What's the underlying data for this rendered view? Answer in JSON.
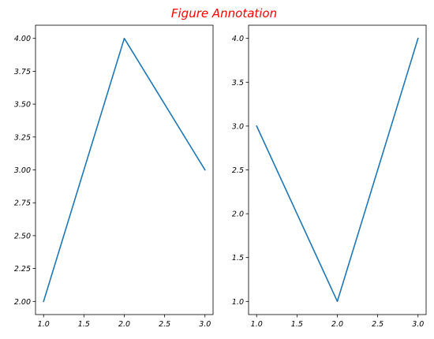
{
  "figure": {
    "title": "Figure Annotation",
    "title_color": "#ff0000"
  },
  "chart_data": [
    {
      "type": "line",
      "title": "",
      "xlabel": "",
      "ylabel": "",
      "x": [
        1.0,
        2.0,
        3.0
      ],
      "series": [
        {
          "values": [
            2.0,
            4.0,
            3.0
          ],
          "color": "#1f77b4"
        }
      ],
      "xlim": [
        0.9,
        3.1
      ],
      "ylim": [
        1.9,
        4.1
      ],
      "xticks": [
        1.0,
        1.5,
        2.0,
        2.5,
        3.0
      ],
      "xtick_labels": [
        "1.0",
        "1.5",
        "2.0",
        "2.5",
        "3.0"
      ],
      "yticks": [
        2.0,
        2.25,
        2.5,
        2.75,
        3.0,
        3.25,
        3.5,
        3.75,
        4.0
      ],
      "ytick_labels": [
        "2.00",
        "2.25",
        "2.50",
        "2.75",
        "3.00",
        "3.25",
        "3.50",
        "3.75",
        "4.00"
      ],
      "grid": false
    },
    {
      "type": "line",
      "title": "",
      "xlabel": "",
      "ylabel": "",
      "x": [
        1.0,
        2.0,
        3.0
      ],
      "series": [
        {
          "values": [
            3.0,
            1.0,
            4.0
          ],
          "color": "#1f77b4"
        }
      ],
      "xlim": [
        0.9,
        3.1
      ],
      "ylim": [
        0.85,
        4.15
      ],
      "xticks": [
        1.0,
        1.5,
        2.0,
        2.5,
        3.0
      ],
      "xtick_labels": [
        "1.0",
        "1.5",
        "2.0",
        "2.5",
        "3.0"
      ],
      "yticks": [
        1.0,
        1.5,
        2.0,
        2.5,
        3.0,
        3.5,
        4.0
      ],
      "ytick_labels": [
        "1.0",
        "1.5",
        "2.0",
        "2.5",
        "3.0",
        "3.5",
        "4.0"
      ],
      "grid": false
    }
  ]
}
